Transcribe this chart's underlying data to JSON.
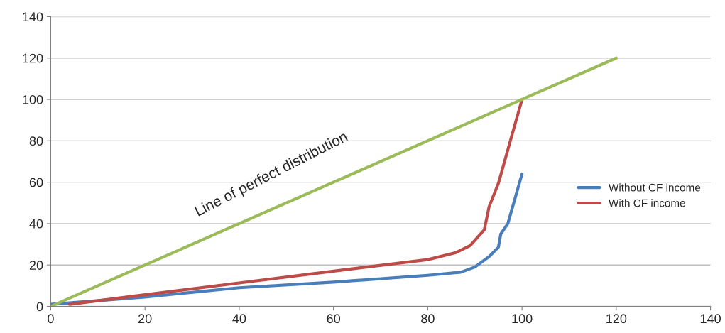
{
  "chart_data": {
    "type": "line",
    "xlim": [
      0,
      140
    ],
    "xticks": [
      0,
      20,
      40,
      60,
      80,
      100,
      120,
      140
    ],
    "ylim": [
      0,
      140
    ],
    "yticks": [
      0,
      20,
      40,
      60,
      80,
      100,
      120,
      140
    ],
    "grid": "y",
    "legend": "right",
    "marker": "none",
    "line_style": "solid",
    "series": [
      {
        "name": "Without CF income",
        "color": "#4a7ebb",
        "x": [
          0,
          20,
          40,
          60,
          80,
          87,
          90,
          93,
          95,
          95.5,
          97,
          100
        ],
        "values": [
          1,
          4.5,
          9,
          11.7,
          15,
          16.5,
          19,
          24,
          28.6,
          35,
          40,
          64
        ]
      },
      {
        "name": "With CF income",
        "color": "#be4b48",
        "x": [
          4,
          20,
          40,
          60,
          80,
          86,
          89,
          92,
          93,
          95,
          100
        ],
        "values": [
          1,
          5.6,
          11.3,
          17,
          22.6,
          26,
          29.4,
          37,
          48,
          59.5,
          100
        ]
      },
      {
        "color": "#9bbb59",
        "x": [
          0,
          120
        ],
        "values": [
          0,
          120
        ]
      }
    ],
    "annotations": [
      "Line of perfect distribution"
    ]
  }
}
